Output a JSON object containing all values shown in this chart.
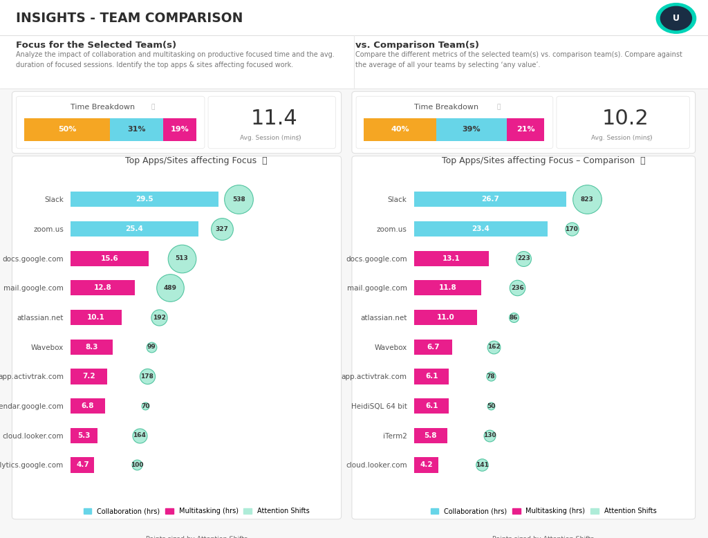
{
  "title": "INSIGHTS - TEAM COMPARISON",
  "left_section_title": "Focus for the Selected Team(s)",
  "left_section_desc": "Analyze the impact of collaboration and multitasking on productive focused time and the avg.\nduration of focused sessions. Identify the top apps & sites affecting focused work.",
  "right_section_title": "vs. Comparison Team(s)",
  "right_section_desc": "Compare the different metrics of the selected team(s) vs. comparison team(s). Compare against\nthe average of all your teams by selecting ‘any value’.",
  "left_breakdown": {
    "orange": 50,
    "cyan": 31,
    "pink": 19
  },
  "left_avg_session": "11.4",
  "right_breakdown": {
    "orange": 40,
    "cyan": 39,
    "pink": 21
  },
  "right_avg_session": "10.2",
  "left_chart_title": "Top Apps/Sites affecting Focus",
  "right_chart_title": "Top Apps/Sites affecting Focus – Comparison",
  "left_apps": [
    "Slack",
    "zoom.us",
    "docs.google.com",
    "mail.google.com",
    "atlassian.net",
    "Wavebox",
    "app.activtrak.com",
    "calendar.google.com",
    "cloud.looker.com",
    "analytics.google.com"
  ],
  "left_collab": [
    29.5,
    25.4,
    0,
    0,
    0,
    0,
    0,
    0,
    0,
    0
  ],
  "left_multi": [
    0,
    0,
    15.6,
    12.8,
    10.1,
    8.3,
    7.2,
    6.8,
    5.3,
    4.7
  ],
  "left_attention": [
    538,
    327,
    513,
    489,
    192,
    99,
    178,
    70,
    164,
    100
  ],
  "right_apps": [
    "Slack",
    "zoom.us",
    "docs.google.com",
    "mail.google.com",
    "atlassian.net",
    "Wavebox",
    "app.activtrak.com",
    "HeidiSQL 64 bit",
    "iTerm2",
    "cloud.looker.com"
  ],
  "right_collab": [
    26.7,
    23.4,
    0,
    0,
    0,
    0,
    0,
    0,
    0,
    0
  ],
  "right_multi": [
    0,
    0,
    13.1,
    11.8,
    11.0,
    6.7,
    6.1,
    6.1,
    5.8,
    4.2
  ],
  "right_attention": [
    823,
    170,
    223,
    236,
    86,
    162,
    78,
    50,
    130,
    141
  ],
  "color_orange": "#F5A623",
  "color_cyan": "#67D5E8",
  "color_pink": "#E91E8C",
  "color_collab": "#67D5E8",
  "color_multi": "#E91E8C",
  "color_attention_bg": "#aeecd8",
  "color_attention_border": "#52c4a0",
  "legend_collab": "Collaboration (hrs)",
  "legend_multi": "Multitasking (hrs)",
  "legend_attention": "Attention Shifts",
  "legend_sub": "Points sized by Attention Shifts"
}
